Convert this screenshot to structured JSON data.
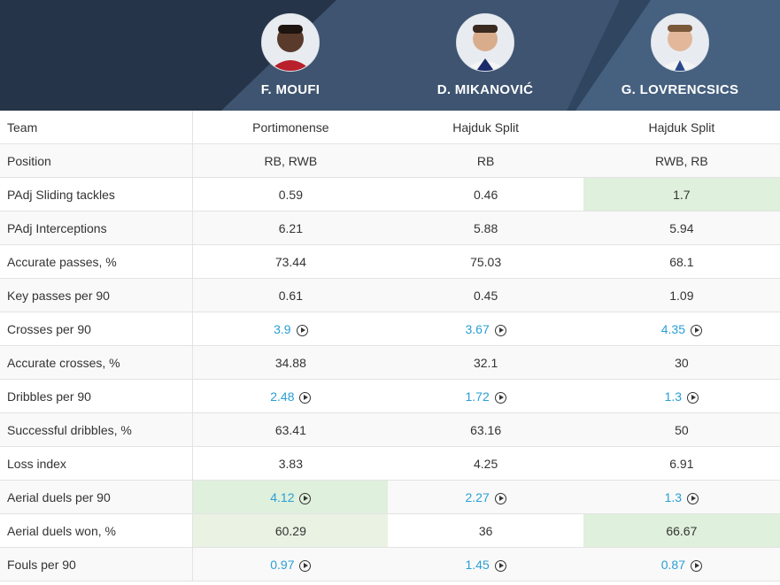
{
  "players": [
    {
      "name": "F. MOUFI"
    },
    {
      "name": "D. MIKANOVIĆ"
    },
    {
      "name": "G. LOVRENCSICS"
    }
  ],
  "colors": {
    "header_bg": "#2c3c52",
    "link": "#2a9ed6",
    "highlight_strong": "#dff0dc",
    "highlight_light": "#eaf2e3"
  },
  "rows": [
    {
      "label": "Team",
      "values": [
        "Portimonense",
        "Hajduk Split",
        "Hajduk Split"
      ]
    },
    {
      "label": "Position",
      "values": [
        "RB, RWB",
        "RB",
        "RWB, RB"
      ]
    },
    {
      "label": "PAdj Sliding tackles",
      "values": [
        "0.59",
        "0.46",
        "1.7"
      ]
    },
    {
      "label": "PAdj Interceptions",
      "values": [
        "6.21",
        "5.88",
        "5.94"
      ]
    },
    {
      "label": "Accurate passes, %",
      "values": [
        "73.44",
        "75.03",
        "68.1"
      ]
    },
    {
      "label": "Key passes per 90",
      "values": [
        "0.61",
        "0.45",
        "1.09"
      ]
    },
    {
      "label": "Crosses per 90",
      "values": [
        "3.9",
        "3.67",
        "4.35"
      ]
    },
    {
      "label": "Accurate crosses, %",
      "values": [
        "34.88",
        "32.1",
        "30"
      ]
    },
    {
      "label": "Dribbles per 90",
      "values": [
        "2.48",
        "1.72",
        "1.3"
      ]
    },
    {
      "label": "Successful dribbles, %",
      "values": [
        "63.41",
        "63.16",
        "50"
      ]
    },
    {
      "label": "Loss index",
      "values": [
        "3.83",
        "4.25",
        "6.91"
      ]
    },
    {
      "label": "Aerial duels per 90",
      "values": [
        "4.12",
        "2.27",
        "1.3"
      ]
    },
    {
      "label": "Aerial duels won, %",
      "values": [
        "60.29",
        "36",
        "66.67"
      ]
    },
    {
      "label": "Fouls per 90",
      "values": [
        "0.97",
        "1.45",
        "0.87"
      ]
    }
  ]
}
